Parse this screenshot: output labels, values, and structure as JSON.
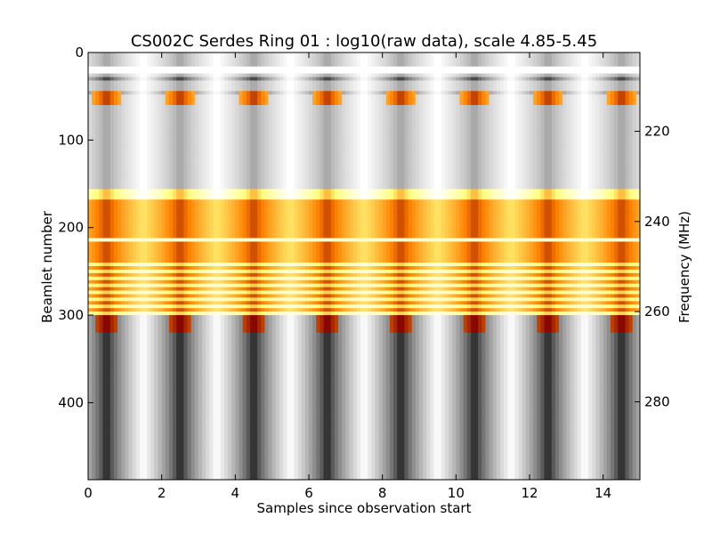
{
  "chart_data": {
    "type": "heatmap",
    "title": "CS002C Serdes Ring 01 : log10(raw data), scale 4.85-5.45",
    "xlabel": "Samples since observation start",
    "ylabel": "Beamlet number",
    "y2label": "Frequency (MHz)",
    "colormap": "afmhot",
    "color_scale": [
      4.85,
      5.45
    ],
    "xlim": [
      0,
      15
    ],
    "ylim": [
      0,
      488
    ],
    "y_inverted": true,
    "x_ticks": [
      0,
      2,
      4,
      6,
      8,
      10,
      12,
      14
    ],
    "y_ticks": [
      0,
      100,
      200,
      300,
      400
    ],
    "y2_ticks": [
      {
        "beamlet": 90,
        "label": "220"
      },
      {
        "beamlet": 193,
        "label": "240"
      },
      {
        "beamlet": 296,
        "label": "260"
      },
      {
        "beamlet": 399,
        "label": "280"
      }
    ],
    "period_samples": 2,
    "dark_sample_phase": 0.5,
    "bright_sample_phase": 1.5,
    "beamlet_bands": [
      {
        "from": 0,
        "to": 155,
        "level": "bright",
        "notes": "stripes near beamlets 20, 30, 45"
      },
      {
        "from": 155,
        "to": 300,
        "level": "mid",
        "notes": "orange/red striped band"
      },
      {
        "from": 300,
        "to": 488,
        "level": "low",
        "notes": "grey/white columns"
      }
    ],
    "grid": false
  }
}
